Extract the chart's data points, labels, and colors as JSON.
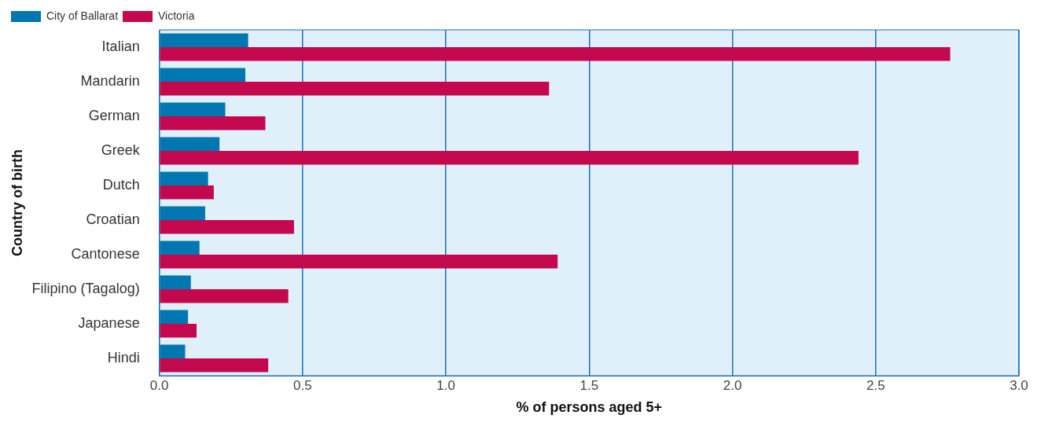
{
  "chart_data": {
    "type": "bar",
    "orientation": "horizontal",
    "xlabel": "% of persons aged 5+",
    "ylabel": "Country of birth",
    "categories": [
      "Italian",
      "Mandarin",
      "German",
      "Greek",
      "Dutch",
      "Croatian",
      "Cantonese",
      "Filipino (Tagalog)",
      "Japanese",
      "Hindi"
    ],
    "series": [
      {
        "name": "City of Ballarat",
        "color": "#0077b0",
        "values": [
          0.31,
          0.3,
          0.23,
          0.21,
          0.17,
          0.16,
          0.14,
          0.11,
          0.1,
          0.09
        ]
      },
      {
        "name": "Victoria",
        "color": "#c4084e",
        "values": [
          2.76,
          1.36,
          0.37,
          2.44,
          0.19,
          0.47,
          1.39,
          0.45,
          0.13,
          0.38
        ]
      }
    ],
    "xlim": [
      0,
      3
    ],
    "xticks": [
      {
        "value": 0,
        "label": "0.0"
      },
      {
        "value": 0.5,
        "label": "0.5"
      },
      {
        "value": 1,
        "label": "1.0"
      },
      {
        "value": 1.5,
        "label": "1.5"
      },
      {
        "value": 2,
        "label": "2.0"
      },
      {
        "value": 2.5,
        "label": "2.5"
      },
      {
        "value": 3,
        "label": "3.0"
      }
    ],
    "grid": "x",
    "legend": "top left"
  }
}
